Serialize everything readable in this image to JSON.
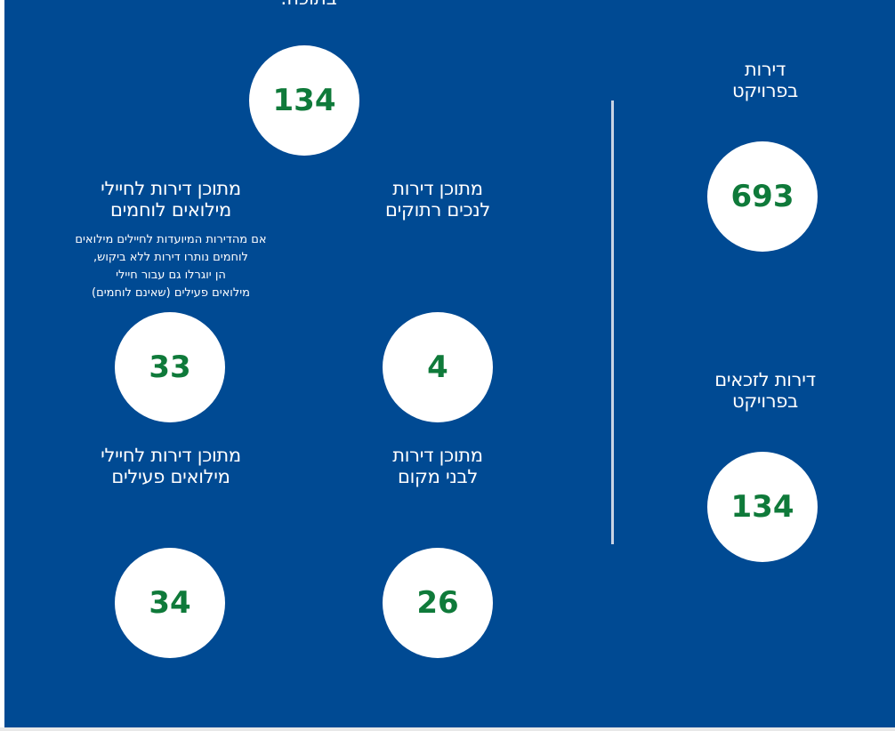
{
  "top_cut_label": "בתוכה:",
  "top_total": "134",
  "right_column": {
    "apartments_label_line1": "דירות",
    "apartments_label_line2": "בפרויקט",
    "apartments_value": "693",
    "eligible_label_line1": "דירות לזכאים",
    "eligible_label_line2": "בפרויקט",
    "eligible_value": "134"
  },
  "grid": {
    "combat_label_line1": "מתוכן דירות לחיילי",
    "combat_label_line2": "מילואים לוחמים",
    "combat_note": [
      "אם מהדירות המיועדות לחיילים מילואים",
      "לוחמים נותרו דירות ללא ביקוש,",
      "הן יוגרלו גם עבור חיילי",
      "מילואים פעילים (שאינם לוחמים)"
    ],
    "combat_value": "33",
    "disabled_label_line1": "מתוכן דירות",
    "disabled_label_line2": "לנכים רתוקים",
    "disabled_value": "4",
    "active_label_line1": "מתוכן דירות לחיילי",
    "active_label_line2": "מילואים פעילים",
    "active_value": "34",
    "locals_label_line1": "מתוכן דירות",
    "locals_label_line2": "לבני מקום",
    "locals_value": "26"
  },
  "colors": {
    "background": "#004a93",
    "number": "#0f7a3a",
    "divider": "#c9d3e4"
  }
}
